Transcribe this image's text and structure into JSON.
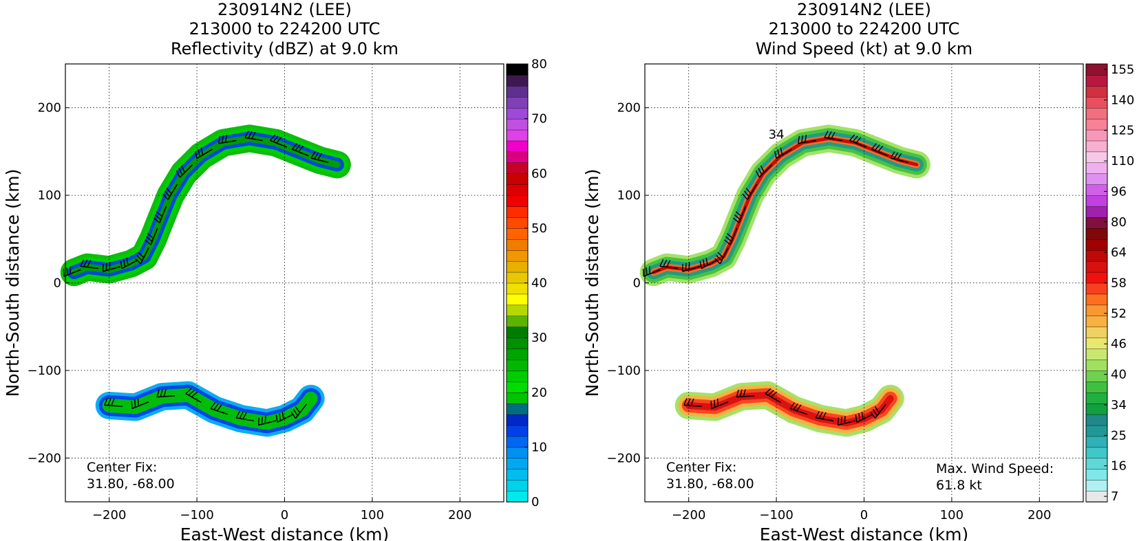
{
  "chart_data": [
    {
      "type": "heatmap",
      "title_lines": [
        "230914N2 (LEE)",
        "213000 to 224200 UTC",
        "Reflectivity (dBZ) at 9.0 km"
      ],
      "xlabel": "East-West distance (km)",
      "ylabel": "North-South distance (km)",
      "xlim": [
        -250,
        250
      ],
      "ylim": [
        -250,
        250
      ],
      "xticks": [
        -200,
        -100,
        0,
        100,
        200
      ],
      "yticks": [
        -200,
        -100,
        0,
        100,
        200
      ],
      "grid": true,
      "annotations": [
        {
          "text": "Center Fix:",
          "position": "bottom-left"
        },
        {
          "text": "31.80, -68.00",
          "position": "bottom-left"
        }
      ],
      "colorbar": {
        "range": [
          0,
          80
        ],
        "tick_labels": [
          "0",
          "10",
          "20",
          "30",
          "40",
          "50",
          "60",
          "70",
          "80"
        ],
        "tick_values": [
          0,
          10,
          20,
          30,
          40,
          50,
          60,
          70,
          80
        ],
        "colors": [
          "#00eaea",
          "#00d2ea",
          "#00bcef",
          "#00a8f0",
          "#0090f0",
          "#0068f0",
          "#0040e8",
          "#0028c8",
          "#006e80",
          "#00c400",
          "#00dc00",
          "#00cc00",
          "#00b800",
          "#00a400",
          "#009000",
          "#007c00",
          "#5ab400",
          "#b4d800",
          "#ffff00",
          "#f0e000",
          "#e8c800",
          "#e8b000",
          "#f09800",
          "#f07c00",
          "#ff6400",
          "#ff4800",
          "#ff2c00",
          "#f00000",
          "#dc0000",
          "#c80000",
          "#c80028",
          "#dc0080",
          "#f000c8",
          "#e040e8",
          "#c050e0",
          "#a048d8",
          "#8040b8",
          "#603090",
          "#401850",
          "#000000"
        ]
      },
      "features": [
        {
          "name": "northern rainband",
          "path_km": [
            [
              -240,
              12
            ],
            [
              -225,
              18
            ],
            [
              -200,
              15
            ],
            [
              -175,
              22
            ],
            [
              -160,
              30
            ],
            [
              -150,
              50
            ],
            [
              -140,
              75
            ],
            [
              -130,
              100
            ],
            [
              -115,
              125
            ],
            [
              -95,
              145
            ],
            [
              -70,
              160
            ],
            [
              -40,
              165
            ],
            [
              -10,
              160
            ],
            [
              15,
              150
            ],
            [
              40,
              140
            ],
            [
              60,
              135
            ]
          ],
          "colors": [
            "#00b800",
            "#00d000",
            "#0040e8",
            "#00a000"
          ]
        },
        {
          "name": "southern rainband",
          "path_km": [
            [
              -200,
              -140
            ],
            [
              -170,
              -142
            ],
            [
              -140,
              -130
            ],
            [
              -110,
              -128
            ],
            [
              -80,
              -145
            ],
            [
              -50,
              -155
            ],
            [
              -20,
              -160
            ],
            [
              0,
              -155
            ],
            [
              20,
              -145
            ],
            [
              30,
              -132
            ]
          ],
          "colors": [
            "#00a8f0",
            "#0040e8",
            "#00c400"
          ]
        }
      ]
    },
    {
      "type": "heatmap",
      "title_lines": [
        "230914N2 (LEE)",
        "213000 to 224200 UTC",
        "Wind Speed (kt) at 9.0 km"
      ],
      "xlabel": "East-West distance (km)",
      "ylabel": "North-South distance (km)",
      "xlim": [
        -250,
        250
      ],
      "ylim": [
        -250,
        250
      ],
      "xticks": [
        -200,
        -100,
        0,
        100,
        200
      ],
      "yticks": [
        -200,
        -100,
        0,
        100,
        200
      ],
      "grid": true,
      "annotations": [
        {
          "text": "Center Fix:",
          "position": "bottom-left"
        },
        {
          "text": "31.80, -68.00",
          "position": "bottom-left"
        },
        {
          "text": "Max. Wind Speed:",
          "position": "bottom-right"
        },
        {
          "text": "61.8 kt",
          "position": "bottom-right"
        },
        {
          "text": "34",
          "position": "contour label"
        }
      ],
      "colorbar": {
        "tick_labels": [
          "7",
          "16",
          "25",
          "34",
          "40",
          "46",
          "52",
          "58",
          "64",
          "80",
          "96",
          "110",
          "125",
          "140",
          "155"
        ],
        "colors": [
          "#e8e8e8",
          "#b0f0f0",
          "#80e8e8",
          "#60d8d8",
          "#40c8c8",
          "#30b0b8",
          "#209898",
          "#208888",
          "#10a040",
          "#20b040",
          "#40c040",
          "#70d050",
          "#a0e060",
          "#c8e870",
          "#e8e870",
          "#f0d060",
          "#f8b040",
          "#f89830",
          "#ff7020",
          "#f84020",
          "#f01010",
          "#d81010",
          "#c00808",
          "#a00000",
          "#800808",
          "#801040",
          "#a020b0",
          "#c040e0",
          "#d060e8",
          "#e090f0",
          "#f0b0f0",
          "#f8c8e8",
          "#f8b0d0",
          "#f898b8",
          "#f88098",
          "#f07080",
          "#e85060",
          "#d03040",
          "#b81840",
          "#901030"
        ]
      },
      "features": [
        {
          "name": "northern rainband",
          "path_km": [
            [
              -240,
              12
            ],
            [
              -225,
              18
            ],
            [
              -200,
              15
            ],
            [
              -175,
              22
            ],
            [
              -160,
              30
            ],
            [
              -150,
              50
            ],
            [
              -140,
              75
            ],
            [
              -130,
              100
            ],
            [
              -115,
              125
            ],
            [
              -95,
              145
            ],
            [
              -70,
              160
            ],
            [
              -40,
              165
            ],
            [
              -10,
              160
            ],
            [
              15,
              150
            ],
            [
              40,
              140
            ],
            [
              60,
              135
            ]
          ],
          "colors": [
            "#a0e060",
            "#40c040",
            "#209888",
            "#ff7020",
            "#c00808"
          ]
        },
        {
          "name": "southern rainband",
          "path_km": [
            [
              -200,
              -140
            ],
            [
              -170,
              -142
            ],
            [
              -140,
              -130
            ],
            [
              -110,
              -128
            ],
            [
              -80,
              -145
            ],
            [
              -50,
              -155
            ],
            [
              -20,
              -160
            ],
            [
              0,
              -155
            ],
            [
              20,
              -145
            ],
            [
              30,
              -132
            ]
          ],
          "colors": [
            "#a0e060",
            "#f8b040",
            "#f84020",
            "#d81010"
          ]
        }
      ]
    }
  ]
}
